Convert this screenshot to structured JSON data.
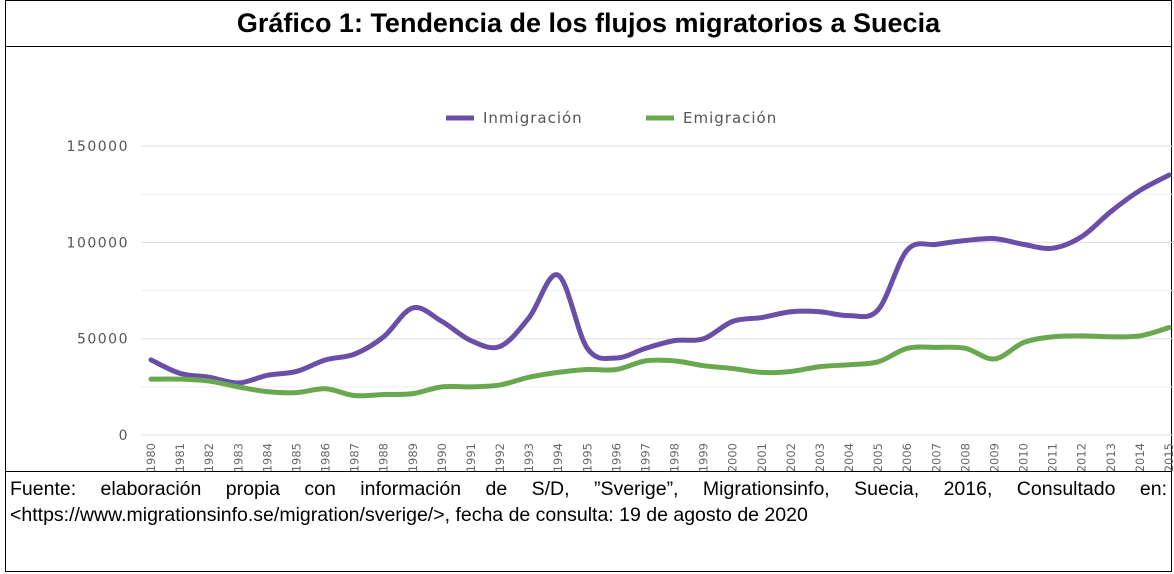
{
  "chart_data": {
    "type": "line",
    "title": "Gráfico 1: Tendencia de los flujos migratorios a Suecia",
    "categories": [
      "1980",
      "1981",
      "1982",
      "1983",
      "1984",
      "1985",
      "1986",
      "1987",
      "1988",
      "1989",
      "1990",
      "1991",
      "1992",
      "1993",
      "1994",
      "1995",
      "1996",
      "1997",
      "1998",
      "1999",
      "2000",
      "2001",
      "2002",
      "2003",
      "2004",
      "2005",
      "2006",
      "2007",
      "2008",
      "2009",
      "2010",
      "2011",
      "2012",
      "2013",
      "2014",
      "2015"
    ],
    "series": [
      {
        "name": "Inmigración",
        "color": "#6a4fa8",
        "values": [
          39000,
          32000,
          30000,
          27000,
          31000,
          33000,
          39000,
          42000,
          51000,
          66000,
          59000,
          49000,
          46000,
          61000,
          83000,
          45000,
          40000,
          45000,
          49000,
          50000,
          59000,
          61000,
          64000,
          64000,
          62000,
          65000,
          96000,
          99000,
          101000,
          102000,
          99000,
          97000,
          103000,
          116000,
          127000,
          135000
        ]
      },
      {
        "name": "Emigración",
        "color": "#6aa84f",
        "values": [
          29000,
          29000,
          28000,
          25000,
          22500,
          22000,
          24000,
          20500,
          21000,
          21500,
          25000,
          25000,
          26000,
          30000,
          32500,
          34000,
          34000,
          38500,
          38500,
          36000,
          34500,
          32500,
          33000,
          35500,
          36500,
          38000,
          45000,
          45500,
          45000,
          39500,
          48000,
          51000,
          51500,
          51000,
          51500,
          55800
        ]
      }
    ],
    "ylim": [
      0,
      175000
    ],
    "yticks": [
      0,
      50000,
      100000,
      150000
    ],
    "minor_yticks": [
      25000,
      75000,
      125000
    ],
    "grid": true,
    "legend": "top",
    "note": "Fuente: elaboración propia con información de S/D, ”Sverige”, Migrationsinfo, Suecia, 2016, Consultado en: <https://www.migrationsinfo.se/migration/sverige/>, fecha de consulta: 19 de agosto de 2020"
  }
}
